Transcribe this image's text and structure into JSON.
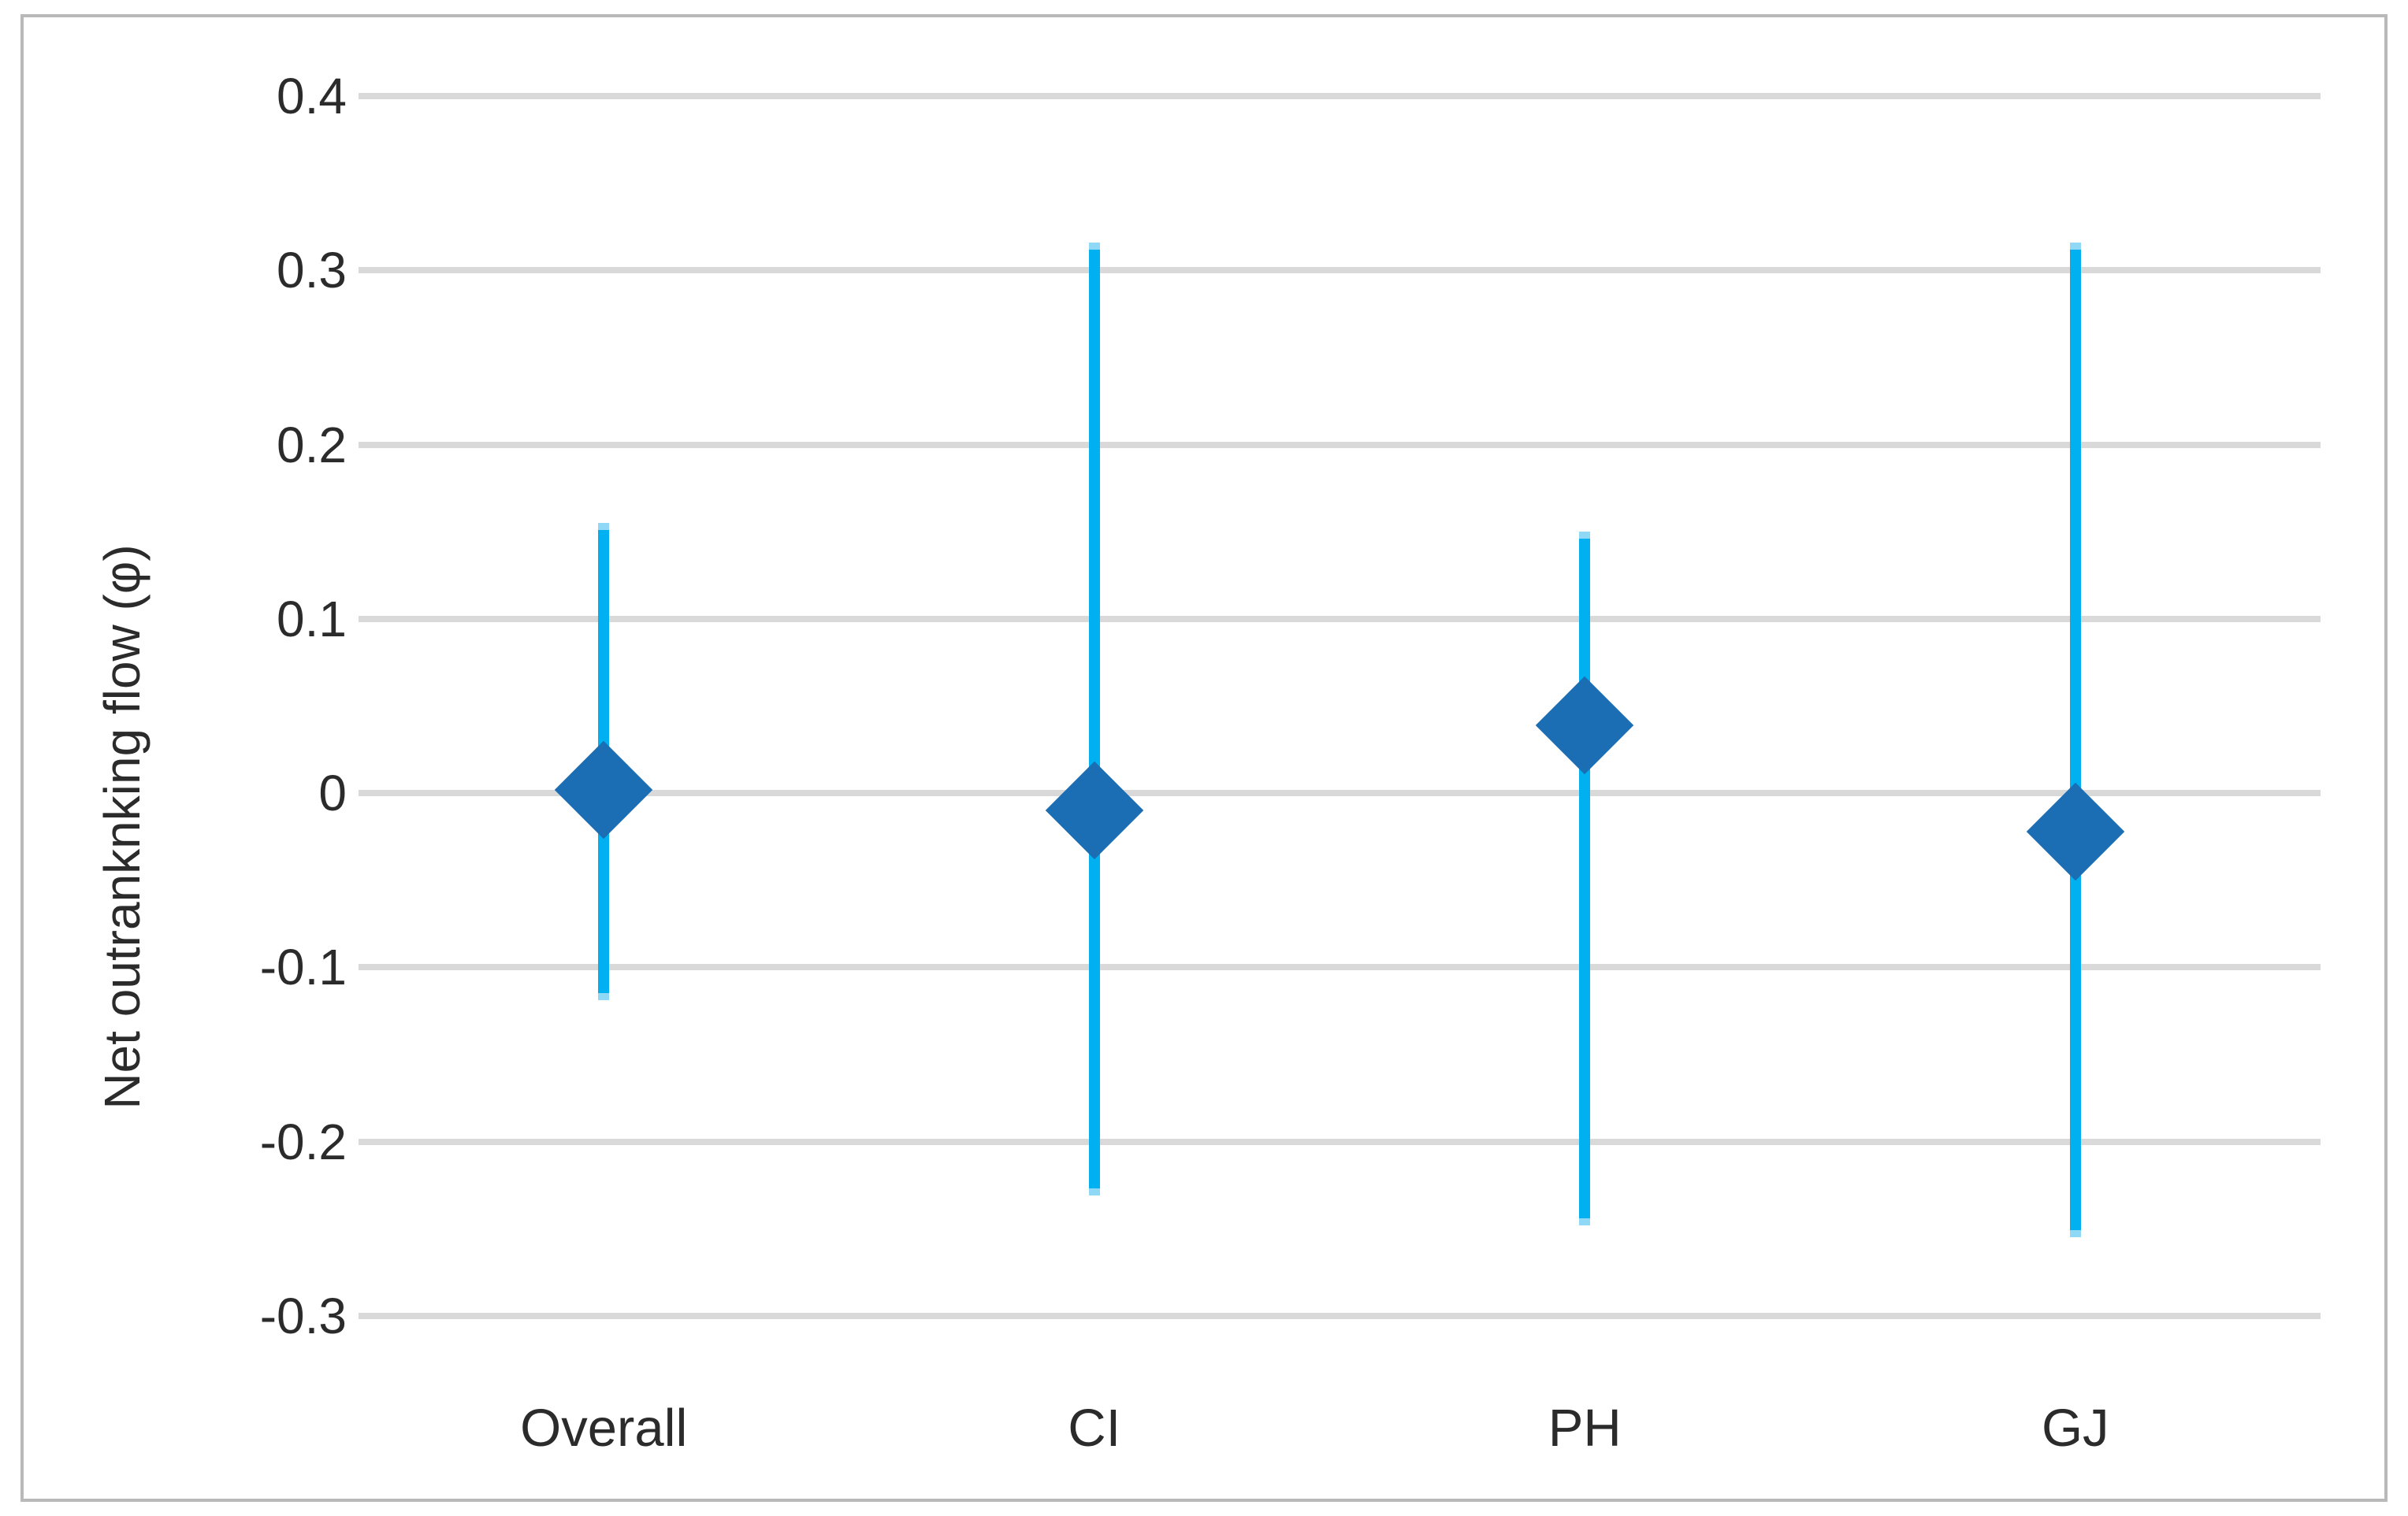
{
  "chart_data": {
    "type": "scatter",
    "title": "",
    "xlabel": "",
    "ylabel": "Net outranknking flow (φ)",
    "categories": [
      "Overall",
      "CI",
      "PH",
      "GJ"
    ],
    "ytick_values": [
      0.4,
      0.3,
      0.2,
      0.1,
      0,
      -0.1,
      -0.2,
      -0.3
    ],
    "ytick_labels": [
      "0.4",
      "0.3",
      "0.2",
      "0.1",
      "0",
      "-0.1",
      "-0.2",
      "-0.3"
    ],
    "ylim": [
      -0.3,
      0.4
    ],
    "grid": true,
    "legend": false,
    "series": [
      {
        "name": "Net outranking flow (φ)",
        "marker": "diamond",
        "values": [
          0.002,
          -0.01,
          0.039,
          -0.022
        ],
        "ci_upper": [
          0.155,
          0.316,
          0.15,
          0.316
        ],
        "ci_lower": [
          -0.119,
          -0.231,
          -0.248,
          -0.255
        ]
      }
    ],
    "colors": {
      "marker": "#1b6db4",
      "error_bar": "#00b0f0",
      "error_bar_tip": "#8fd9f6",
      "gridline": "#d9d9d9",
      "text": "#2b2b2b",
      "frame_border": "#b9b9b9",
      "background": "#ffffff"
    }
  }
}
